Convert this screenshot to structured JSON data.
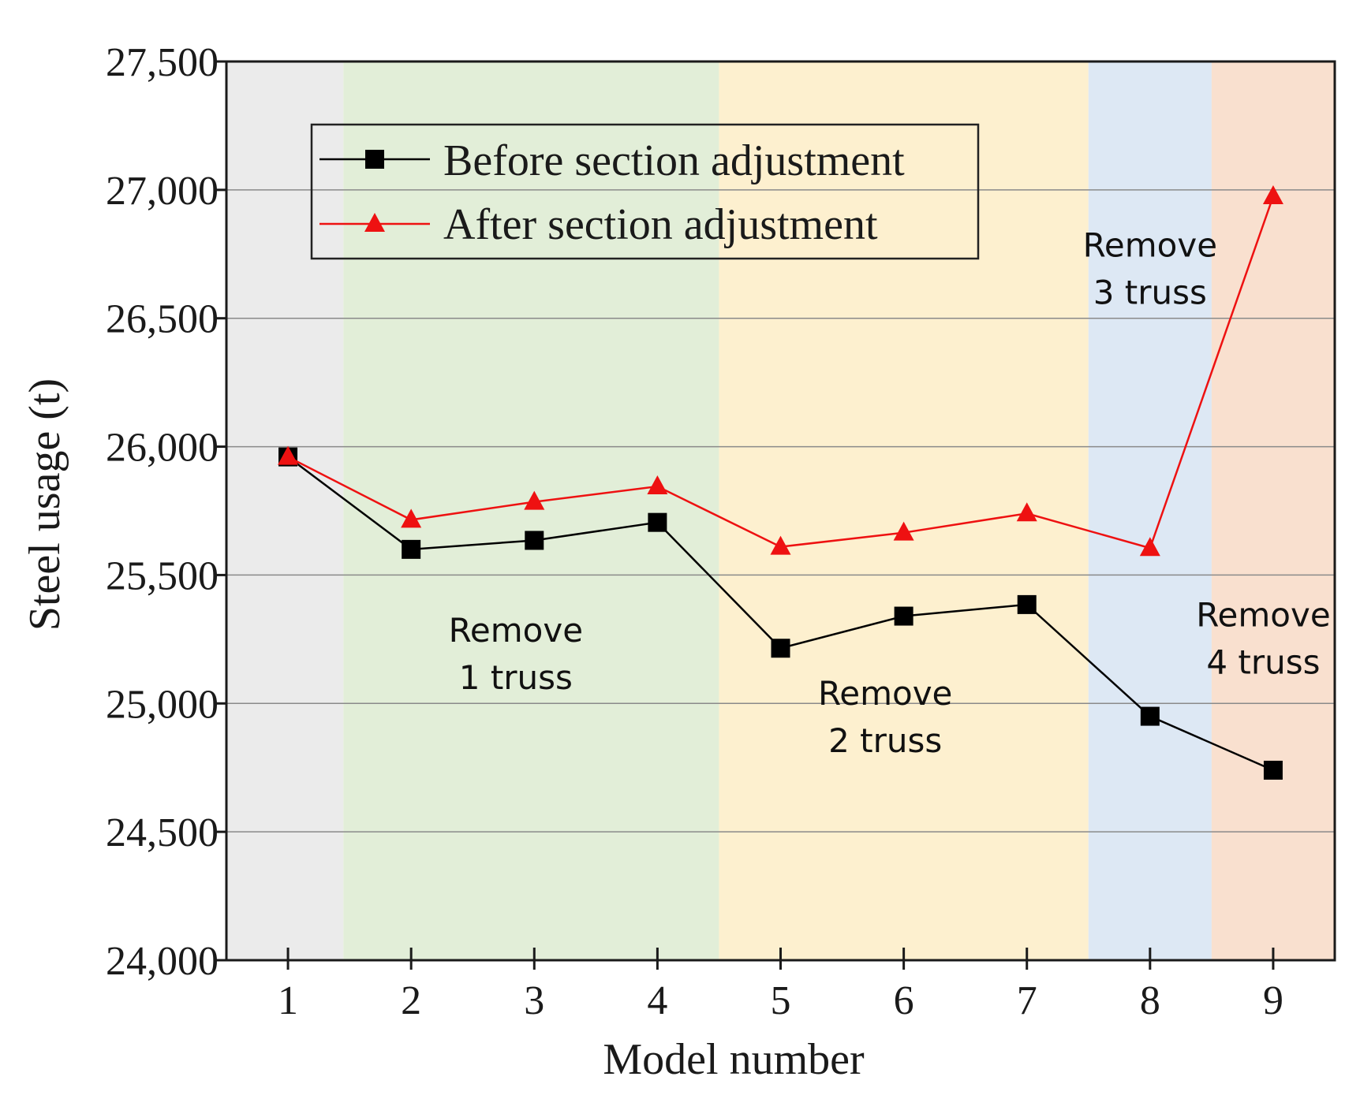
{
  "chart_data": {
    "type": "line",
    "title": "",
    "xlabel": "Model number",
    "ylabel": "Steel usage (t)",
    "x": [
      1,
      2,
      3,
      4,
      5,
      6,
      7,
      8,
      9
    ],
    "x_tick_labels": [
      "1",
      "2",
      "3",
      "4",
      "5",
      "6",
      "7",
      "8",
      "9"
    ],
    "xlim": [
      0.5,
      9.5
    ],
    "ylim": [
      24000,
      27500
    ],
    "y_ticks": [
      24000,
      24500,
      25000,
      25500,
      26000,
      26500,
      27000,
      27500
    ],
    "y_tick_labels": [
      "24,000",
      "24,500",
      "25,000",
      "25,500",
      "26,000",
      "26,500",
      "27,000",
      "27,500"
    ],
    "grid": "horizontal",
    "legend_position": "top-left",
    "series": [
      {
        "name": "Before section adjustment",
        "color": "#000000",
        "marker": "square",
        "values": [
          25960,
          25600,
          25635,
          25705,
          25215,
          25340,
          25385,
          24950,
          24740
        ]
      },
      {
        "name": "After section adjustment",
        "color": "#ee1111",
        "marker": "triangle",
        "values": [
          25960,
          25715,
          25785,
          25845,
          25610,
          25665,
          25740,
          25605,
          26975
        ]
      }
    ],
    "regions": [
      {
        "from": 0.5,
        "to": 1.45,
        "color": "#ebebeb",
        "label_lines": []
      },
      {
        "from": 1.45,
        "to": 4.5,
        "color": "#e2eed8",
        "label_lines": [
          "Remove",
          "1 truss"
        ]
      },
      {
        "from": 4.5,
        "to": 7.5,
        "color": "#fdf0cf",
        "label_lines": [
          "Remove",
          "2 truss"
        ]
      },
      {
        "from": 7.5,
        "to": 8.5,
        "color": "#dde8f4",
        "label_lines": [
          "Remove",
          "3 truss"
        ]
      },
      {
        "from": 8.5,
        "to": 9.5,
        "color": "#f9e0cf",
        "label_lines": [
          "Remove",
          "4 truss"
        ]
      }
    ]
  }
}
